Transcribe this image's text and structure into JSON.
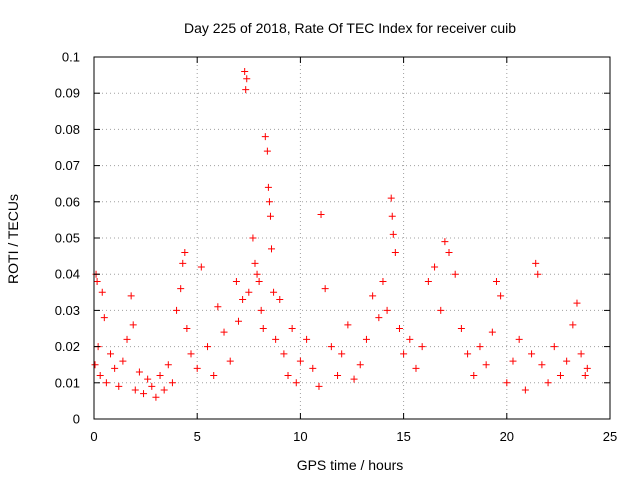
{
  "chart_data": {
    "type": "scatter",
    "title": "Day 225 of 2018, Rate Of TEC Index for receiver cuib",
    "xlabel": "GPS time / hours",
    "ylabel": "ROTI / TECUs",
    "xlim": [
      0,
      25
    ],
    "ylim": [
      0,
      0.1
    ],
    "xticks": [
      0,
      5,
      10,
      15,
      20,
      25
    ],
    "yticks": [
      0,
      0.01,
      0.02,
      0.03,
      0.04,
      0.05,
      0.06,
      0.07,
      0.08,
      0.09,
      0.1
    ],
    "xtick_labels": [
      "0",
      "5",
      "10",
      "15",
      "20",
      "25"
    ],
    "ytick_labels": [
      "0",
      "0.01",
      "0.02",
      "0.03",
      "0.04",
      "0.05",
      "0.06",
      "0.07",
      "0.08",
      "0.09",
      "0.1"
    ],
    "grid": true,
    "legend": false,
    "marker": "plus",
    "color": "#ff0000",
    "series": [
      {
        "x": [
          0.05,
          0.1,
          0.15,
          0.2,
          0.3,
          0.4,
          0.5,
          0.6,
          0.8,
          1.0,
          1.2,
          1.4,
          1.6,
          1.8,
          1.9,
          2.0,
          2.2,
          2.4,
          2.6,
          2.8,
          3.0,
          3.2,
          3.4,
          3.6,
          3.8,
          4.0,
          4.2,
          4.3,
          4.4,
          4.5,
          4.7,
          5.0,
          5.2,
          5.5,
          5.8,
          6.0,
          6.3,
          6.6,
          6.9,
          7.0,
          7.2,
          7.3,
          7.35,
          7.4,
          7.5,
          7.7,
          7.8,
          7.9,
          8.0,
          8.1,
          8.2,
          8.3,
          8.4,
          8.45,
          8.5,
          8.55,
          8.6,
          8.7,
          8.8,
          9.0,
          9.2,
          9.4,
          9.6,
          9.8,
          10.0,
          10.3,
          10.6,
          10.9,
          11.0,
          11.2,
          11.5,
          11.8,
          12.0,
          12.3,
          12.6,
          12.9,
          13.2,
          13.5,
          13.8,
          14.0,
          14.2,
          14.4,
          14.45,
          14.5,
          14.6,
          14.8,
          15.0,
          15.3,
          15.6,
          15.9,
          16.2,
          16.5,
          16.8,
          17.0,
          17.2,
          17.5,
          17.8,
          18.1,
          18.4,
          18.7,
          19.0,
          19.3,
          19.5,
          19.7,
          20.0,
          20.3,
          20.6,
          20.9,
          21.2,
          21.4,
          21.5,
          21.7,
          22.0,
          22.3,
          22.6,
          22.9,
          23.2,
          23.4,
          23.6,
          23.8,
          23.9
        ],
        "y": [
          0.015,
          0.04,
          0.038,
          0.02,
          0.012,
          0.035,
          0.028,
          0.01,
          0.018,
          0.014,
          0.009,
          0.016,
          0.022,
          0.034,
          0.026,
          0.008,
          0.013,
          0.007,
          0.011,
          0.009,
          0.006,
          0.012,
          0.008,
          0.015,
          0.01,
          0.03,
          0.036,
          0.043,
          0.046,
          0.025,
          0.018,
          0.014,
          0.042,
          0.02,
          0.012,
          0.031,
          0.024,
          0.016,
          0.038,
          0.027,
          0.033,
          0.096,
          0.091,
          0.094,
          0.035,
          0.05,
          0.043,
          0.04,
          0.038,
          0.03,
          0.025,
          0.078,
          0.074,
          0.064,
          0.06,
          0.056,
          0.047,
          0.035,
          0.022,
          0.033,
          0.018,
          0.012,
          0.025,
          0.01,
          0.016,
          0.022,
          0.014,
          0.009,
          0.0565,
          0.036,
          0.02,
          0.012,
          0.018,
          0.026,
          0.011,
          0.015,
          0.022,
          0.034,
          0.028,
          0.038,
          0.03,
          0.061,
          0.056,
          0.051,
          0.046,
          0.025,
          0.018,
          0.022,
          0.014,
          0.02,
          0.038,
          0.042,
          0.03,
          0.049,
          0.046,
          0.04,
          0.025,
          0.018,
          0.012,
          0.02,
          0.015,
          0.024,
          0.038,
          0.034,
          0.01,
          0.016,
          0.022,
          0.008,
          0.018,
          0.043,
          0.04,
          0.015,
          0.01,
          0.02,
          0.012,
          0.016,
          0.026,
          0.032,
          0.018,
          0.012,
          0.014
        ]
      }
    ]
  }
}
